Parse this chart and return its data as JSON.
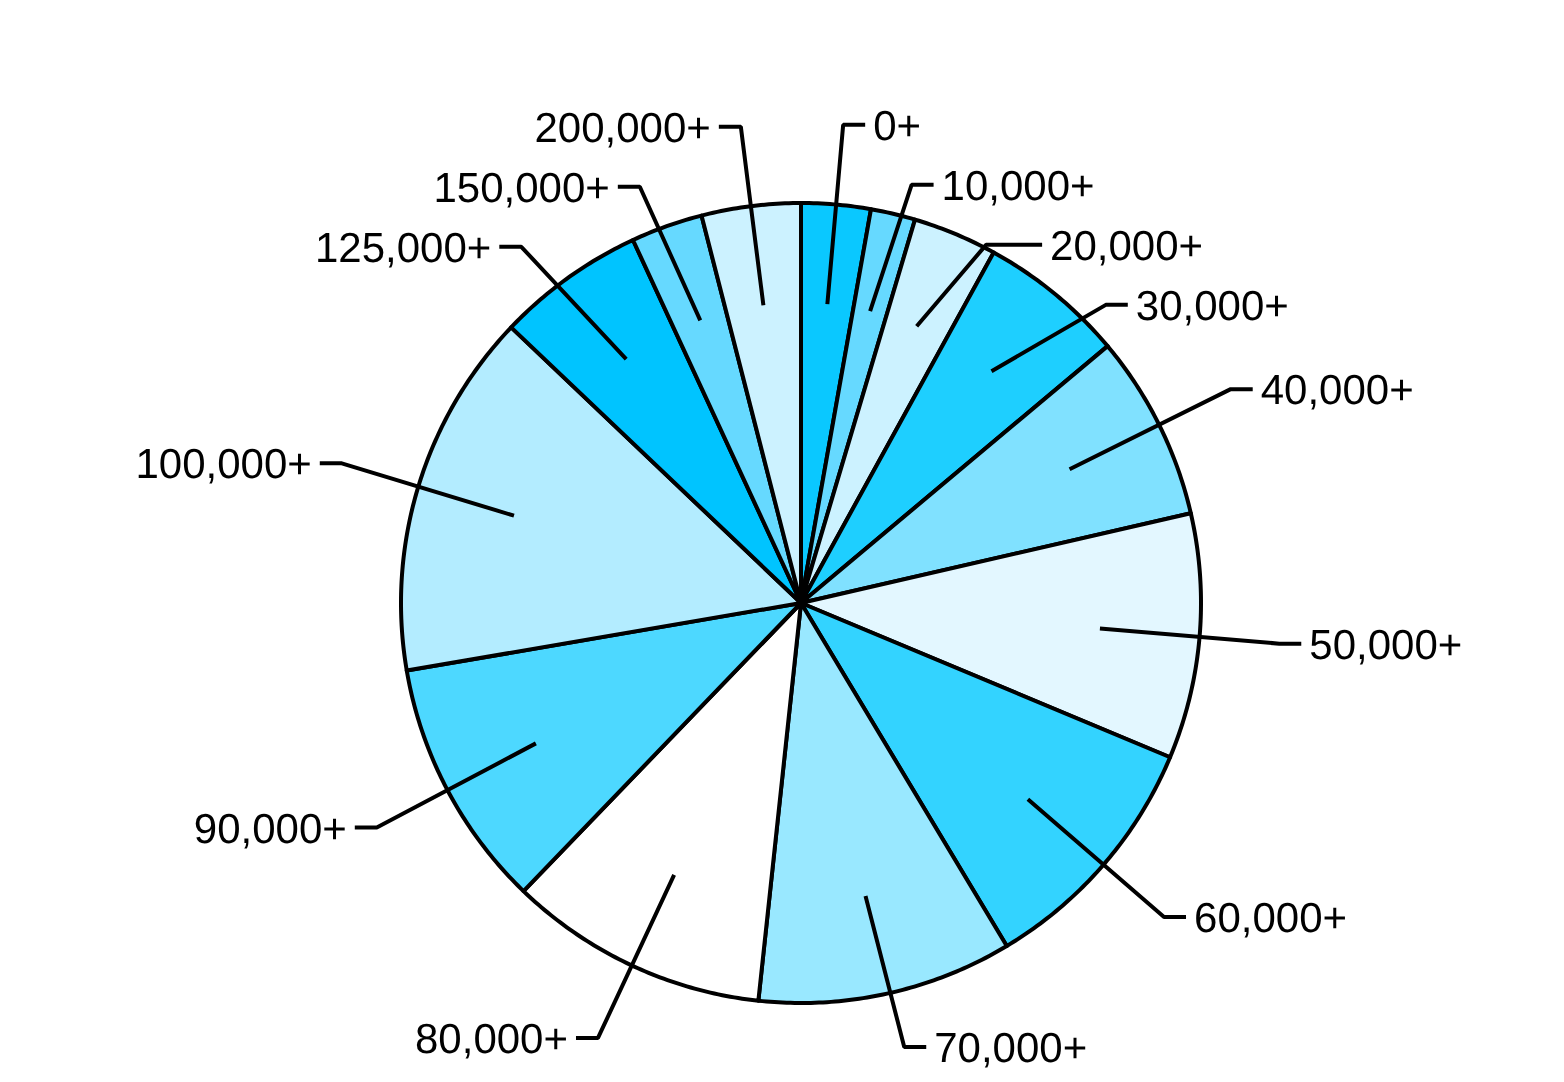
{
  "chart_data": {
    "type": "pie",
    "categories": [
      "0+",
      "10,000+",
      "20,000+",
      "30,000+",
      "40,000+",
      "50,000+",
      "60,000+",
      "70,000+",
      "80,000+",
      "90,000+",
      "100,000+",
      "125,000+",
      "150,000+",
      "200,000+"
    ],
    "values": [
      2.8,
      1.8,
      3.4,
      5.9,
      7.5,
      9.9,
      10.1,
      10.3,
      10.5,
      10.1,
      14.8,
      6.0,
      2.9,
      4.0
    ],
    "colors": [
      "#0ac8ff",
      "#66d9ff",
      "#ccf2ff",
      "#1ecfff",
      "#80e1ff",
      "#e3f7ff",
      "#33d3ff",
      "#99e8ff",
      "#ffffff",
      "#4dd8ff",
      "#b3ecff",
      "#00c4ff",
      "#66d9ff",
      "#ccf2ff"
    ]
  }
}
